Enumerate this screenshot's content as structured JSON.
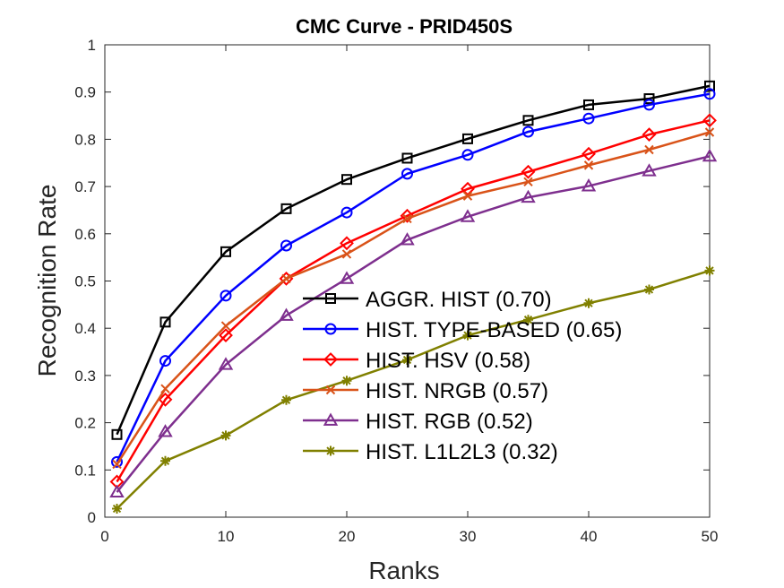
{
  "chart_data": {
    "type": "line",
    "title": "CMC Curve - PRID450S",
    "xlabel": "Ranks",
    "ylabel": "Recognition Rate",
    "xlim": [
      0,
      50
    ],
    "ylim": [
      0,
      1
    ],
    "xticks": [
      0,
      10,
      20,
      30,
      40,
      50
    ],
    "yticks": [
      0,
      0.1,
      0.2,
      0.3,
      0.4,
      0.5,
      0.6,
      0.7,
      0.8,
      0.9,
      1
    ],
    "grid": false,
    "legend_position": "center-right",
    "x": [
      1,
      5,
      10,
      15,
      20,
      25,
      30,
      35,
      40,
      45,
      50
    ],
    "series": [
      {
        "name": "AGGR. HIST (0.70)",
        "color": "#000000",
        "marker": "square",
        "values": [
          0.175,
          0.413,
          0.562,
          0.653,
          0.715,
          0.76,
          0.801,
          0.84,
          0.873,
          0.886,
          0.913
        ]
      },
      {
        "name": "HIST. TYPE-BASED (0.65)",
        "color": "#0000ff",
        "marker": "circle",
        "values": [
          0.117,
          0.331,
          0.469,
          0.575,
          0.645,
          0.727,
          0.767,
          0.816,
          0.844,
          0.873,
          0.896
        ]
      },
      {
        "name": "HIST. HSV (0.58)",
        "color": "#ff0000",
        "marker": "diamond",
        "values": [
          0.075,
          0.249,
          0.385,
          0.505,
          0.58,
          0.638,
          0.695,
          0.731,
          0.769,
          0.81,
          0.84
        ]
      },
      {
        "name": "HIST. NRGB (0.57)",
        "color": "#d95319",
        "marker": "x",
        "values": [
          0.112,
          0.272,
          0.405,
          0.505,
          0.557,
          0.632,
          0.68,
          0.71,
          0.745,
          0.778,
          0.815
        ]
      },
      {
        "name": "HIST. RGB (0.52)",
        "color": "#7e2f8e",
        "marker": "triangle",
        "values": [
          0.053,
          0.181,
          0.323,
          0.427,
          0.505,
          0.587,
          0.636,
          0.677,
          0.701,
          0.733,
          0.764
        ]
      },
      {
        "name": "HIST. L1L2L3 (0.32)",
        "color": "#808000",
        "marker": "star",
        "values": [
          0.018,
          0.119,
          0.173,
          0.248,
          0.289,
          0.333,
          0.385,
          0.418,
          0.453,
          0.482,
          0.522
        ]
      }
    ]
  }
}
